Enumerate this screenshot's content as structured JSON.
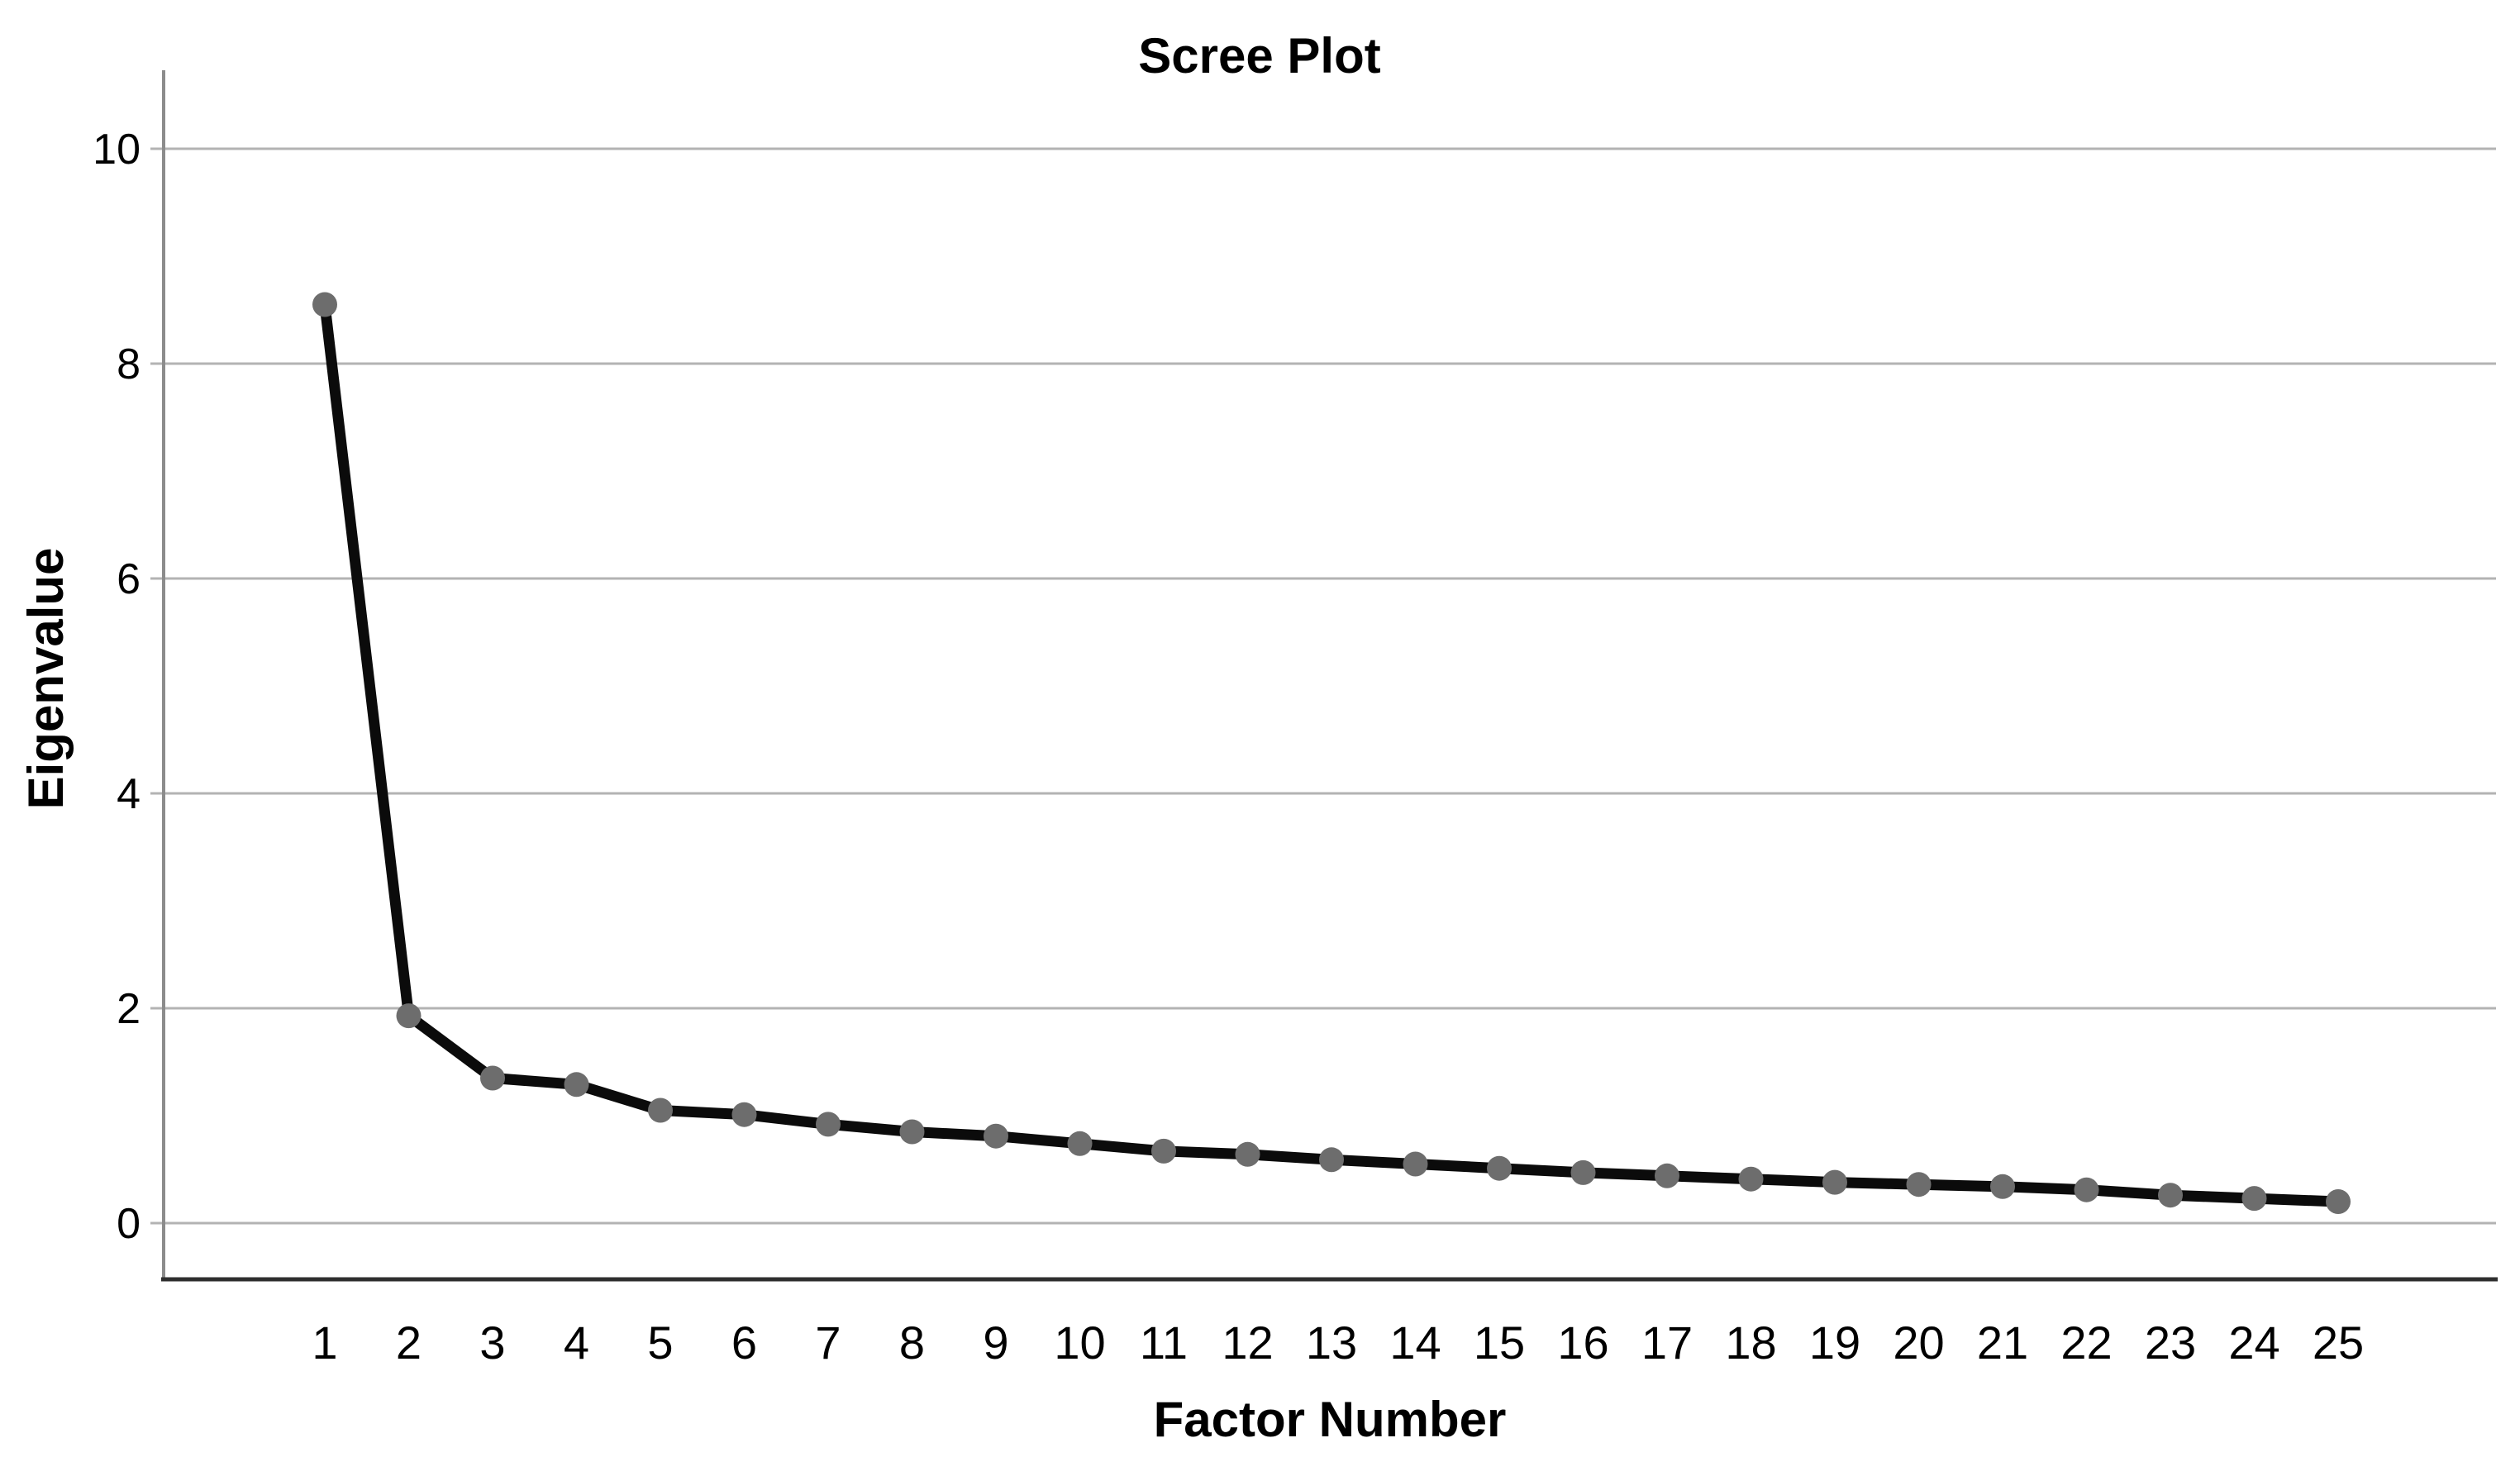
{
  "chart_data": {
    "type": "line",
    "title": "Scree Plot",
    "xlabel": "Factor Number",
    "ylabel": "Eigenvalue",
    "x": [
      1,
      2,
      3,
      4,
      5,
      6,
      7,
      8,
      9,
      10,
      11,
      12,
      13,
      14,
      15,
      16,
      17,
      18,
      19,
      20,
      21,
      22,
      23,
      24,
      25
    ],
    "series": [
      {
        "name": "Eigenvalue",
        "values": [
          8.55,
          1.93,
          1.35,
          1.29,
          1.05,
          1.01,
          0.92,
          0.85,
          0.81,
          0.74,
          0.67,
          0.64,
          0.59,
          0.55,
          0.51,
          0.47,
          0.44,
          0.41,
          0.38,
          0.36,
          0.34,
          0.31,
          0.26,
          0.23,
          0.2
        ]
      }
    ],
    "y_ticks": [
      0,
      2,
      4,
      6,
      8,
      10
    ],
    "ylim": [
      -0.5,
      10.7
    ],
    "grid": "horizontal-only",
    "legend": "none",
    "marker": "filled-circle",
    "colors": {
      "line": "#0b0b0b",
      "marker": "#6d6d6d",
      "gridline": "#b3b3b3",
      "y_axis_line": "#8c8c8c",
      "x_axis_line": "#2e2e2e",
      "text": "#000000",
      "background": "#ffffff"
    }
  }
}
